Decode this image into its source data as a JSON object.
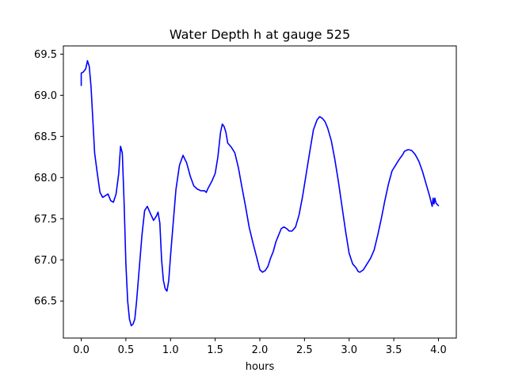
{
  "chart_data": {
    "type": "line",
    "title": "Water Depth h at gauge 525",
    "xlabel": "hours",
    "ylabel": "",
    "xlim": [
      -0.2,
      4.2
    ],
    "ylim": [
      66.05,
      69.6
    ],
    "xticks": [
      0.0,
      0.5,
      1.0,
      1.5,
      2.0,
      2.5,
      3.0,
      3.5,
      4.0
    ],
    "xtick_labels": [
      "0.0",
      "0.5",
      "1.0",
      "1.5",
      "2.0",
      "2.5",
      "3.0",
      "3.5",
      "4.0"
    ],
    "yticks": [
      66.5,
      67.0,
      67.5,
      68.0,
      68.5,
      69.0,
      69.5
    ],
    "ytick_labels": [
      "66.5",
      "67.0",
      "67.5",
      "68.0",
      "68.5",
      "69.0",
      "69.5"
    ],
    "grid": false,
    "series": [
      {
        "color": "#0000ff",
        "x": [
          0.0,
          0.0,
          0.02,
          0.05,
          0.07,
          0.09,
          0.11,
          0.13,
          0.15,
          0.18,
          0.21,
          0.24,
          0.27,
          0.3,
          0.33,
          0.36,
          0.39,
          0.42,
          0.44,
          0.46,
          0.48,
          0.5,
          0.52,
          0.54,
          0.56,
          0.58,
          0.6,
          0.62,
          0.65,
          0.68,
          0.71,
          0.74,
          0.76,
          0.78,
          0.81,
          0.84,
          0.86,
          0.88,
          0.9,
          0.92,
          0.94,
          0.96,
          0.98,
          1.0,
          1.03,
          1.06,
          1.1,
          1.14,
          1.18,
          1.22,
          1.26,
          1.3,
          1.34,
          1.38,
          1.4,
          1.42,
          1.46,
          1.5,
          1.53,
          1.56,
          1.58,
          1.6,
          1.62,
          1.64,
          1.68,
          1.72,
          1.76,
          1.8,
          1.84,
          1.88,
          1.92,
          1.96,
          2.0,
          2.03,
          2.06,
          2.09,
          2.12,
          2.15,
          2.18,
          2.21,
          2.24,
          2.27,
          2.3,
          2.33,
          2.36,
          2.4,
          2.44,
          2.48,
          2.52,
          2.56,
          2.6,
          2.64,
          2.67,
          2.7,
          2.73,
          2.76,
          2.8,
          2.84,
          2.88,
          2.92,
          2.96,
          3.0,
          3.04,
          3.08,
          3.1,
          3.12,
          3.16,
          3.2,
          3.24,
          3.28,
          3.32,
          3.36,
          3.4,
          3.44,
          3.48,
          3.52,
          3.56,
          3.6,
          3.62,
          3.66,
          3.7,
          3.74,
          3.78,
          3.82,
          3.86,
          3.9,
          3.93,
          3.94,
          3.95,
          3.96,
          3.97,
          3.98,
          4.0
        ],
        "y": [
          69.12,
          69.27,
          69.28,
          69.32,
          69.42,
          69.35,
          69.1,
          68.7,
          68.3,
          68.05,
          67.82,
          67.76,
          67.78,
          67.8,
          67.72,
          67.7,
          67.8,
          68.05,
          68.38,
          68.3,
          67.7,
          66.95,
          66.5,
          66.28,
          66.2,
          66.22,
          66.28,
          66.5,
          66.9,
          67.3,
          67.6,
          67.65,
          67.6,
          67.55,
          67.48,
          67.53,
          67.58,
          67.45,
          67.0,
          66.75,
          66.65,
          66.62,
          66.75,
          67.05,
          67.45,
          67.85,
          68.15,
          68.27,
          68.18,
          68.02,
          67.9,
          67.86,
          67.84,
          67.84,
          67.82,
          67.87,
          67.95,
          68.05,
          68.25,
          68.55,
          68.65,
          68.62,
          68.55,
          68.42,
          68.37,
          68.3,
          68.12,
          67.88,
          67.65,
          67.4,
          67.22,
          67.05,
          66.88,
          66.85,
          66.87,
          66.92,
          67.02,
          67.1,
          67.22,
          67.3,
          67.38,
          67.4,
          67.38,
          67.35,
          67.35,
          67.4,
          67.55,
          67.78,
          68.05,
          68.32,
          68.58,
          68.7,
          68.74,
          68.72,
          68.68,
          68.6,
          68.45,
          68.22,
          67.95,
          67.65,
          67.35,
          67.08,
          66.95,
          66.9,
          66.86,
          66.85,
          66.88,
          66.95,
          67.02,
          67.12,
          67.3,
          67.5,
          67.72,
          67.92,
          68.08,
          68.15,
          68.22,
          68.28,
          68.32,
          68.34,
          68.33,
          68.28,
          68.2,
          68.08,
          67.93,
          67.78,
          67.65,
          67.75,
          67.68,
          67.75,
          67.7,
          67.68,
          67.66
        ]
      }
    ]
  }
}
